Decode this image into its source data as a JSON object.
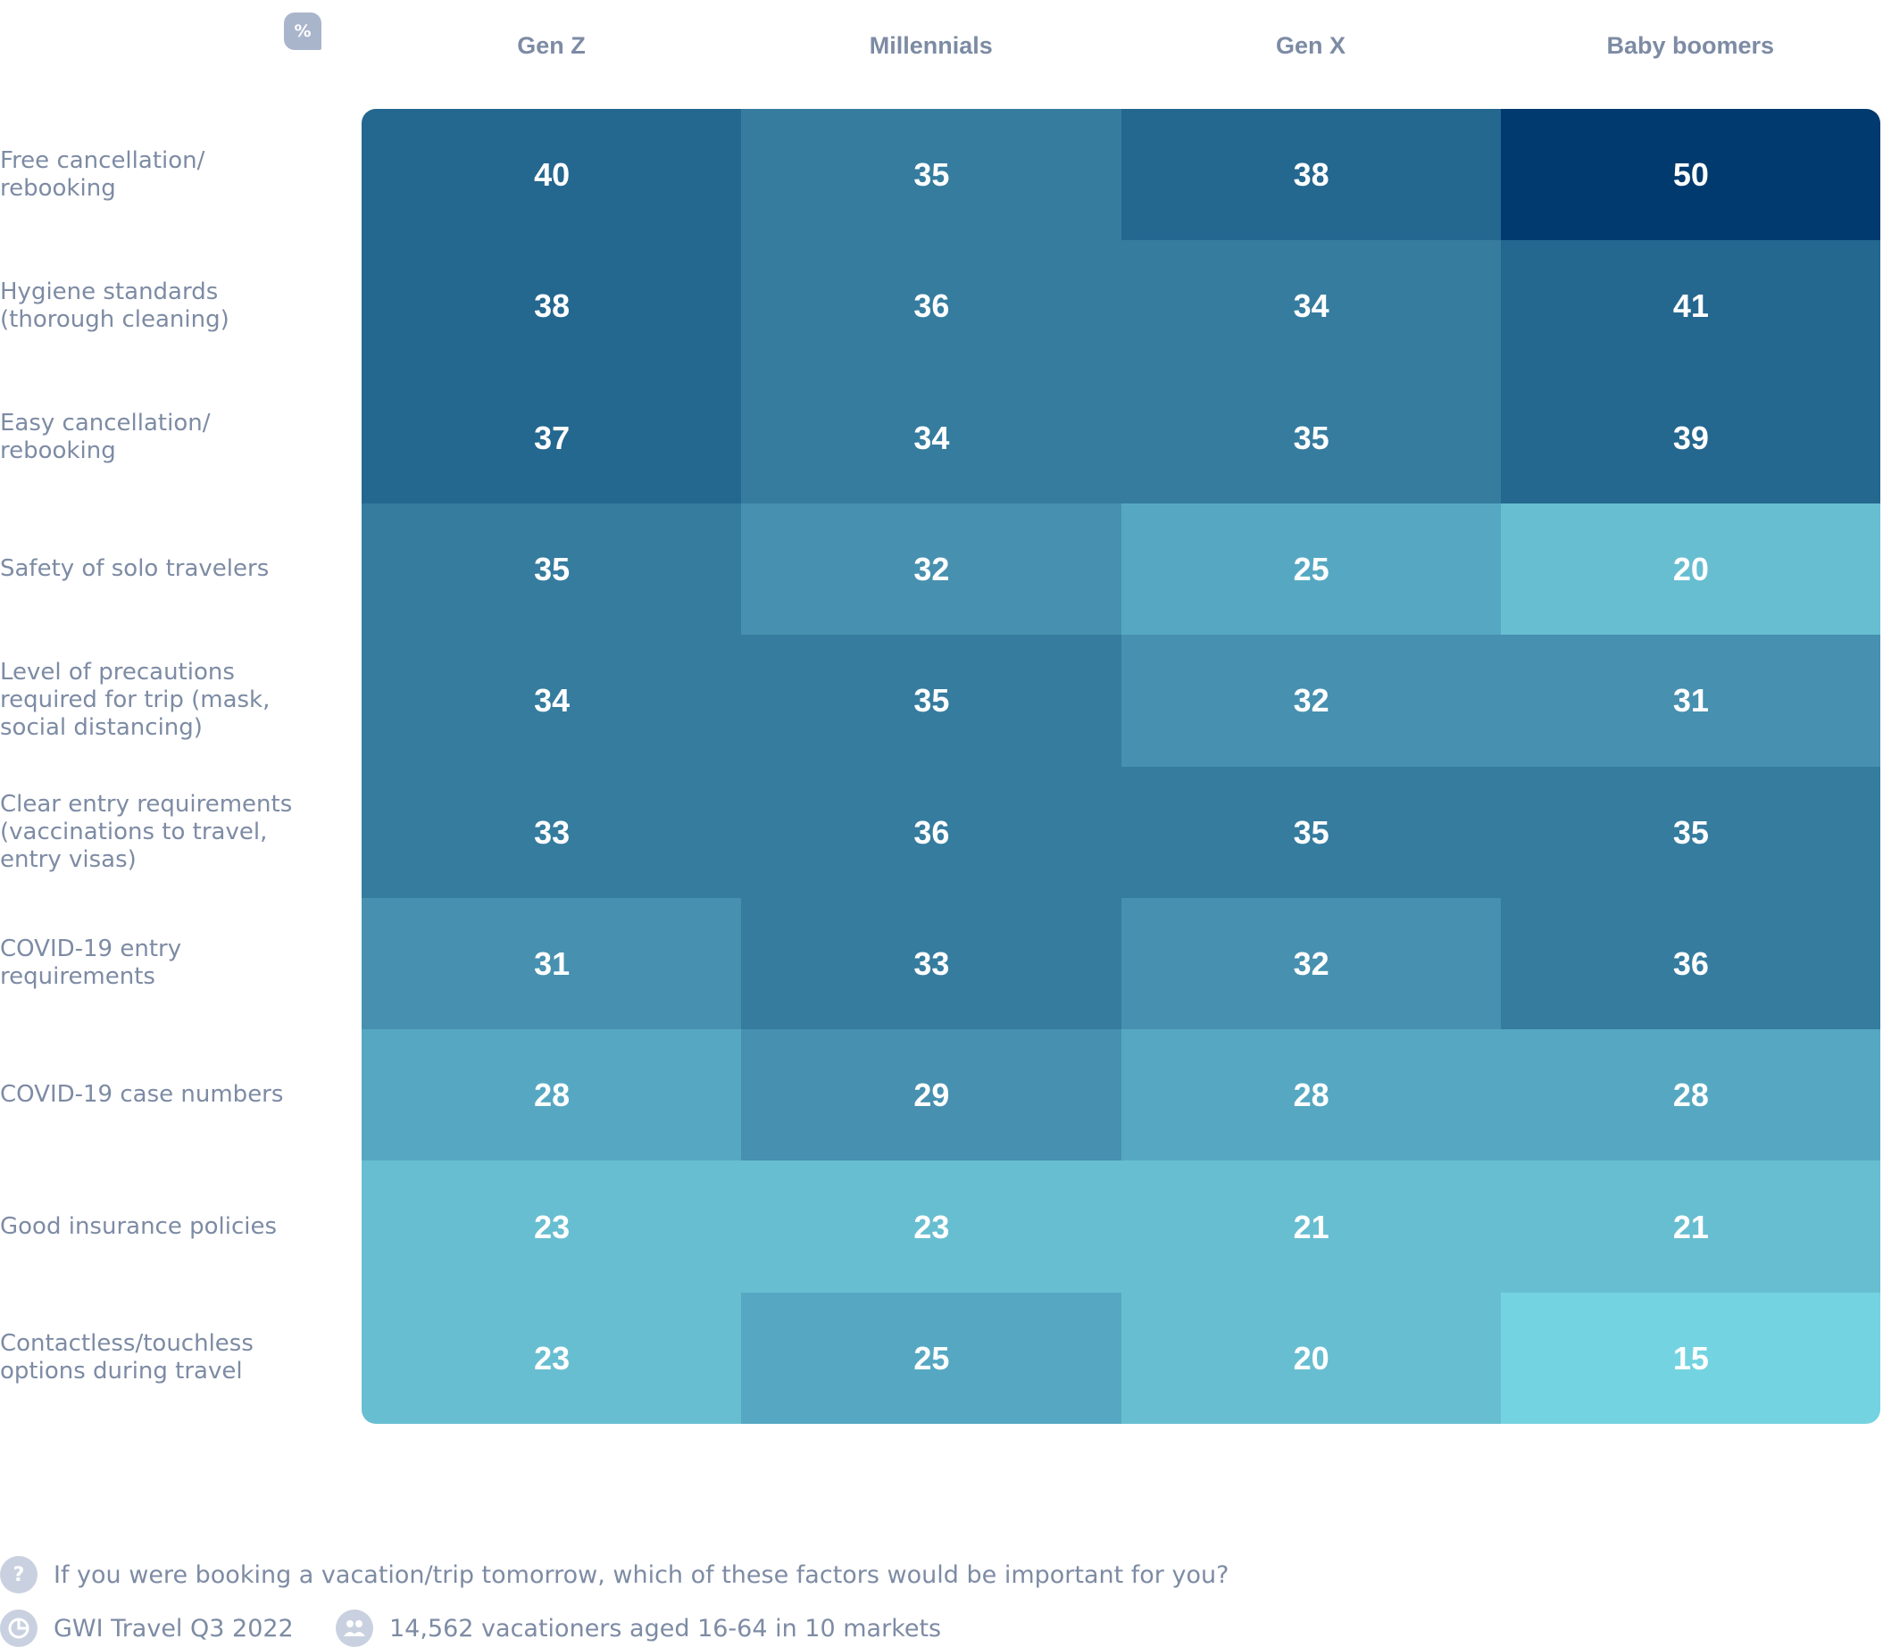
{
  "unit_badge": "%",
  "chart_data": {
    "type": "heatmap",
    "columns": [
      "Gen Z",
      "Millennials",
      "Gen X",
      "Baby boomers"
    ],
    "rows": [
      {
        "label": [
          "Free cancellation/",
          "rebooking"
        ],
        "values": [
          40,
          35,
          38,
          50
        ]
      },
      {
        "label": [
          "Hygiene standards",
          "(thorough cleaning)"
        ],
        "values": [
          38,
          36,
          34,
          41
        ]
      },
      {
        "label": [
          "Easy cancellation/",
          "rebooking"
        ],
        "values": [
          37,
          34,
          35,
          39
        ]
      },
      {
        "label": [
          "Safety of solo travelers"
        ],
        "values": [
          35,
          32,
          25,
          20
        ]
      },
      {
        "label": [
          "Level of precautions",
          "required for trip (mask,",
          "social distancing)"
        ],
        "values": [
          34,
          35,
          32,
          31
        ]
      },
      {
        "label": [
          "Clear entry requirements",
          "(vaccinations to travel,",
          "entry visas)"
        ],
        "values": [
          33,
          36,
          35,
          35
        ]
      },
      {
        "label": [
          "COVID-19 entry",
          "requirements"
        ],
        "values": [
          31,
          33,
          32,
          36
        ]
      },
      {
        "label": [
          "COVID-19 case numbers"
        ],
        "values": [
          28,
          29,
          28,
          28
        ]
      },
      {
        "label": [
          "Good insurance policies"
        ],
        "values": [
          23,
          23,
          21,
          21
        ]
      },
      {
        "label": [
          "Contactless/touchless",
          "options during travel"
        ],
        "values": [
          23,
          25,
          20,
          15
        ]
      }
    ],
    "color_scale": [
      {
        "min": 0,
        "color": "#74d3e1"
      },
      {
        "min": 20,
        "color": "#68bed1"
      },
      {
        "min": 25,
        "color": "#56a8c2"
      },
      {
        "min": 29,
        "color": "#4790b0"
      },
      {
        "min": 33,
        "color": "#357c9f"
      },
      {
        "min": 37,
        "color": "#24678f"
      },
      {
        "min": 45,
        "color": "#003a6e"
      }
    ]
  },
  "footer": {
    "question": "If you were booking a vacation/trip tomorrow, which of these factors would be important for you?",
    "source": "GWI Travel Q3 2022",
    "sample": "14,562 vacationers aged 16-64 in 10 markets",
    "question_icon": "?"
  }
}
